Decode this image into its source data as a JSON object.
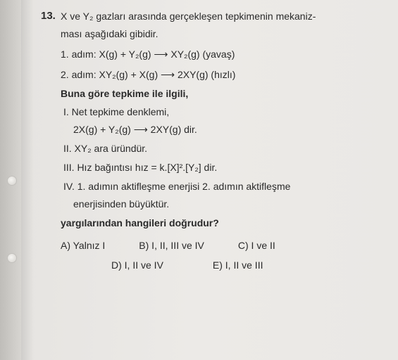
{
  "question_number": "13.",
  "stem_line1": "X ve Y₂ gazları arasında gerçekleşen tepkimenin mekaniz-",
  "stem_line2": "ması aşağıdaki gibidir.",
  "step1_label": "1. adım:",
  "step1_eq": "X(g) + Y₂(g) ⟶ XY₂(g)   (yavaş)",
  "step2_label": "2. adım:",
  "step2_eq": "XY₂(g) + X(g) ⟶ 2XY(g)  (hızlı)",
  "lead_bold": "Buna göre tepkime ile ilgili,",
  "s1_head": "I. Net tepkime denklemi,",
  "s1_eq": "2X(g) + Y₂(g) ⟶ 2XY(g) dir.",
  "s2": "II. XY₂ ara üründür.",
  "s3": "III. Hız bağıntısı hız = k.[X]².[Y₂] dir.",
  "s4a": "IV. 1. adımın aktifleşme enerjisi 2. adımın aktifleşme",
  "s4b": "enerjisinden büyüktür.",
  "closer_bold": "yargılarından hangileri doğrudur?",
  "choices": {
    "A": "A) Yalnız I",
    "B": "B) I, II, III ve IV",
    "C": "C) I ve II",
    "D": "D) I, II ve IV",
    "E": "E) I, II ve III"
  }
}
